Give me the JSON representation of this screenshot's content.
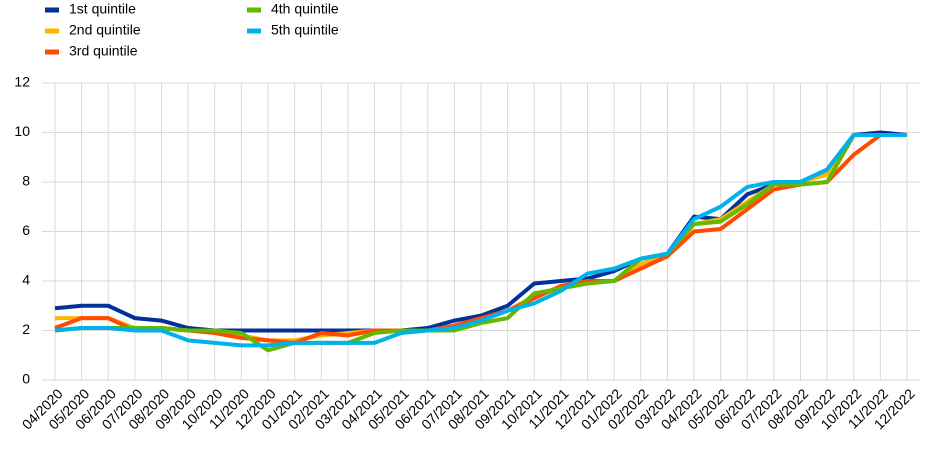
{
  "chart_data": {
    "type": "line",
    "categories": [
      "04/2020",
      "05/2020",
      "06/2020",
      "07/2020",
      "08/2020",
      "09/2020",
      "10/2020",
      "11/2020",
      "12/2020",
      "01/2021",
      "02/2021",
      "03/2021",
      "04/2021",
      "05/2021",
      "06/2021",
      "07/2021",
      "08/2021",
      "09/2021",
      "10/2021",
      "11/2021",
      "12/2021",
      "01/2022",
      "02/2022",
      "03/2022",
      "04/2022",
      "05/2022",
      "06/2022",
      "07/2022",
      "08/2022",
      "09/2022",
      "10/2022",
      "11/2022",
      "12/2022"
    ],
    "series": [
      {
        "name": "1st quintile",
        "color": "#003299",
        "values": [
          2.9,
          3.0,
          3.0,
          2.5,
          2.4,
          2.1,
          2.0,
          2.0,
          2.0,
          2.0,
          2.0,
          2.0,
          2.0,
          2.0,
          2.1,
          2.4,
          2.6,
          3.0,
          3.9,
          4.0,
          4.1,
          4.4,
          4.9,
          5.1,
          6.6,
          6.5,
          7.5,
          7.9,
          8.0,
          8.5,
          9.9,
          10.0,
          9.9
        ]
      },
      {
        "name": "2nd quintile",
        "color": "#ffb400",
        "values": [
          2.5,
          2.5,
          2.5,
          2.1,
          2.1,
          2.0,
          2.0,
          1.8,
          1.6,
          1.6,
          1.8,
          1.9,
          2.0,
          2.0,
          2.0,
          2.1,
          2.4,
          2.8,
          3.4,
          3.7,
          4.0,
          4.0,
          4.7,
          5.0,
          6.3,
          6.5,
          7.2,
          7.9,
          8.0,
          8.3,
          9.9,
          9.9,
          9.9
        ]
      },
      {
        "name": "3rd quintile",
        "color": "#ff4b00",
        "values": [
          2.1,
          2.5,
          2.5,
          2.0,
          2.1,
          2.0,
          1.9,
          1.7,
          1.6,
          1.5,
          1.9,
          1.8,
          2.0,
          2.0,
          2.0,
          2.2,
          2.5,
          2.8,
          3.3,
          3.8,
          4.0,
          4.0,
          4.5,
          5.0,
          6.0,
          6.1,
          6.9,
          7.7,
          7.9,
          8.0,
          9.1,
          9.9,
          9.9
        ]
      },
      {
        "name": "4th quintile",
        "color": "#65b800",
        "values": [
          2.0,
          2.1,
          2.1,
          2.1,
          2.1,
          2.0,
          2.0,
          1.9,
          1.2,
          1.5,
          1.5,
          1.5,
          1.9,
          2.0,
          2.0,
          2.0,
          2.3,
          2.5,
          3.5,
          3.7,
          3.9,
          4.0,
          4.9,
          5.1,
          6.3,
          6.4,
          7.1,
          7.9,
          7.9,
          8.0,
          9.9,
          9.9,
          9.9
        ]
      },
      {
        "name": "5th quintile",
        "color": "#00b1ea",
        "values": [
          2.0,
          2.1,
          2.1,
          2.0,
          2.0,
          1.6,
          1.5,
          1.4,
          1.4,
          1.5,
          1.5,
          1.5,
          1.5,
          1.9,
          2.0,
          2.1,
          2.4,
          2.8,
          3.1,
          3.6,
          4.3,
          4.5,
          4.9,
          5.1,
          6.5,
          7.0,
          7.8,
          8.0,
          8.0,
          8.5,
          9.9,
          9.9,
          9.9
        ]
      }
    ],
    "ylim": [
      0,
      12
    ],
    "yticks": [
      0,
      2,
      4,
      6,
      8,
      10,
      12
    ],
    "grid": true,
    "legend": "top-left"
  }
}
